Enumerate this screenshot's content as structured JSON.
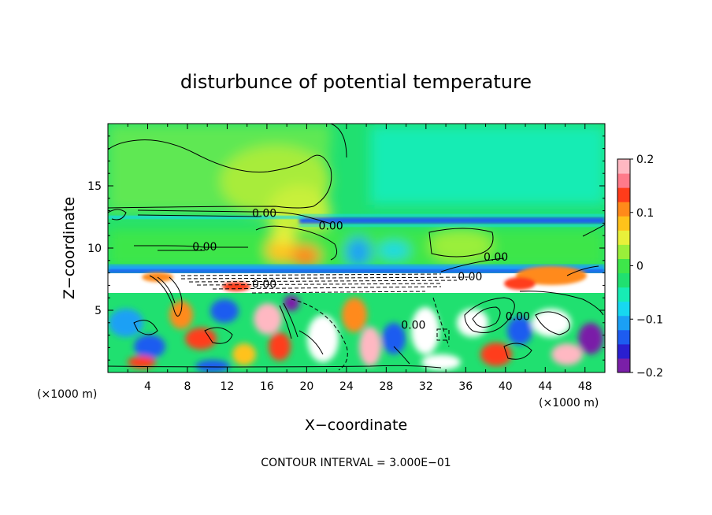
{
  "chart_data": {
    "type": "heatmap",
    "title": "disturbunce of potential temperature",
    "xlabel": "X−coordinate",
    "ylabel": "Z−coordinate",
    "x_unit": "(×1000 m)",
    "x_unit_right": "(×1000 m)",
    "xlim": [
      0,
      50
    ],
    "ylim": [
      0,
      20
    ],
    "x_ticks": [
      4,
      8,
      12,
      16,
      20,
      24,
      28,
      32,
      36,
      40,
      44,
      48
    ],
    "y_ticks": [
      5,
      10,
      15
    ],
    "colorbar": {
      "range": [
        -0.2,
        0.2
      ],
      "ticks": [
        {
          "value": 0.2,
          "label": "0.2"
        },
        {
          "value": 0.1,
          "label": "0.1"
        },
        {
          "value": 0,
          "label": "0"
        },
        {
          "value": -0.1,
          "label": "−0.1"
        },
        {
          "value": -0.2,
          "label": "−0.2"
        }
      ],
      "colors": [
        "#7a1fa8",
        "#2a1fd0",
        "#1d5cf0",
        "#1ba0f5",
        "#17d8f0",
        "#17ecb4",
        "#20e070",
        "#3ee64a",
        "#9aef3a",
        "#e8f03a",
        "#ffc21a",
        "#ff8a1a",
        "#ff3c1a",
        "#ff7a8a",
        "#ffb8c2"
      ]
    },
    "contour_labels": [
      {
        "x": 14.5,
        "z": 12.5,
        "text": "0.00"
      },
      {
        "x": 21.2,
        "z": 11.5,
        "text": "0.00"
      },
      {
        "x": 8.5,
        "z": 9.8,
        "text": "0.00"
      },
      {
        "x": 14.5,
        "z": 6.8,
        "text": "0.00"
      },
      {
        "x": 37.8,
        "z": 9.0,
        "text": "0.00"
      },
      {
        "x": 35.2,
        "z": 7.4,
        "text": "0.00"
      },
      {
        "x": 29.5,
        "z": 3.5,
        "text": "0.00"
      },
      {
        "x": 40.0,
        "z": 4.2,
        "text": "0.00"
      }
    ],
    "contour_interval_text": "CONTOUR INTERVAL = 3.000E−01"
  },
  "colors": {
    "background": "#ffffff",
    "upper_field": "#22e47a",
    "warm_patch": "#a8ec3a",
    "hot_spot": "#ff8a1a",
    "cold_band": "#1d5cf0",
    "white_region": "#ffffff"
  }
}
